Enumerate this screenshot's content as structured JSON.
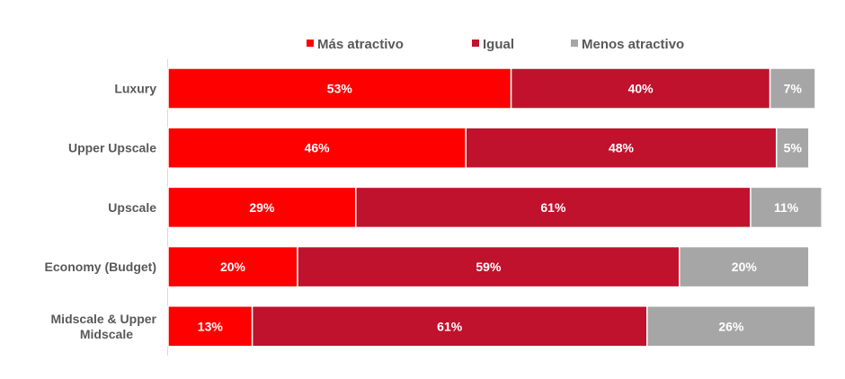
{
  "chart_data": {
    "type": "bar",
    "orientation": "horizontal",
    "stacked": true,
    "normalized": true,
    "title": "",
    "xlabel": "",
    "ylabel": "",
    "xlim": [
      0,
      100
    ],
    "grid": false,
    "legend_position": "top",
    "categories": [
      "Luxury",
      "Upper Upscale",
      "Upscale",
      "Economy (Budget)",
      "Midscale & Upper Midscale"
    ],
    "series": [
      {
        "name": "Más atractivo",
        "color": "#ff0000",
        "values": [
          53,
          46,
          29,
          20,
          13
        ],
        "labels": [
          "53%",
          "46%",
          "29%",
          "20%",
          "13%"
        ]
      },
      {
        "name": "Igual",
        "color": "#c0122d",
        "values": [
          40,
          48,
          61,
          59,
          61
        ],
        "labels": [
          "40%",
          "48%",
          "61%",
          "59%",
          "61%"
        ]
      },
      {
        "name": "Menos atractivo",
        "color": "#a6a6a6",
        "values": [
          7,
          5,
          11,
          20,
          26
        ],
        "labels": [
          "7%",
          "5%",
          "11%",
          "20%",
          "26%"
        ]
      }
    ]
  }
}
